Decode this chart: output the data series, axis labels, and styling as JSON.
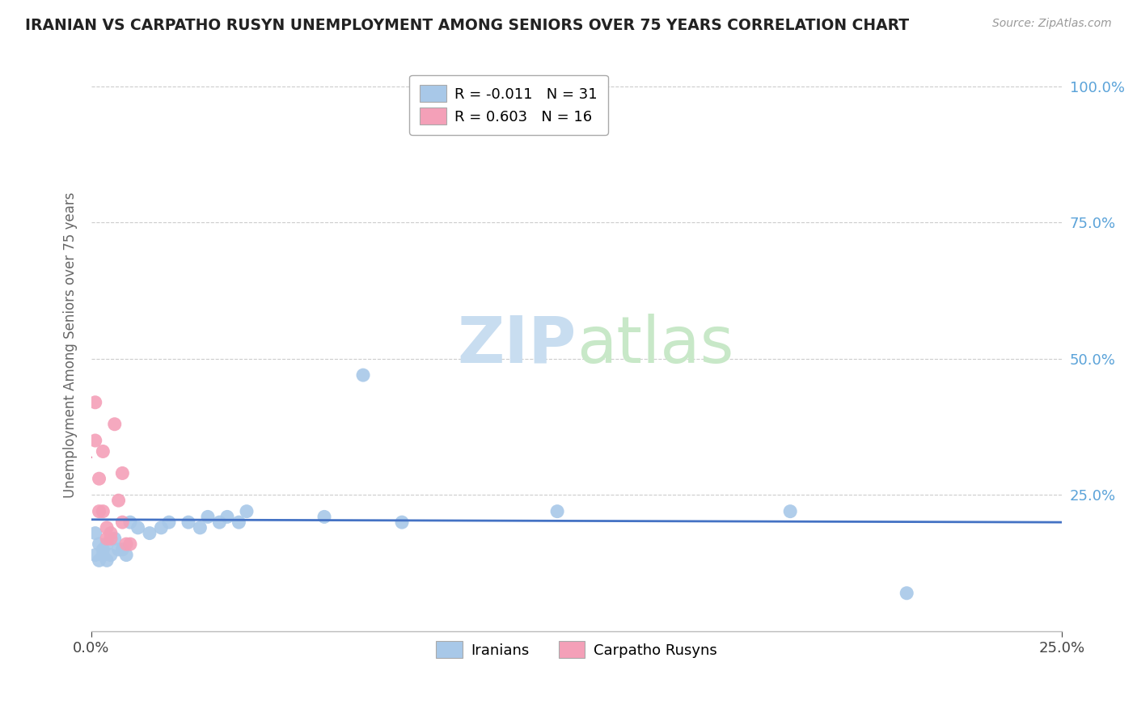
{
  "title": "IRANIAN VS CARPATHO RUSYN UNEMPLOYMENT AMONG SENIORS OVER 75 YEARS CORRELATION CHART",
  "source": "Source: ZipAtlas.com",
  "ylabel": "Unemployment Among Seniors over 75 years",
  "xlim": [
    0.0,
    0.25
  ],
  "ylim": [
    0.0,
    1.05
  ],
  "legend_label1": "R = -0.011   N = 31",
  "legend_label2": "R = 0.603   N = 16",
  "iranian_color": "#a8c8e8",
  "carpatho_color": "#f4a0b8",
  "iranian_line_color": "#4472c4",
  "carpatho_line_color": "#e05080",
  "background_color": "#ffffff",
  "iranians_x": [
    0.001,
    0.001,
    0.002,
    0.002,
    0.003,
    0.003,
    0.004,
    0.004,
    0.005,
    0.006,
    0.007,
    0.008,
    0.009,
    0.01,
    0.012,
    0.015,
    0.018,
    0.02,
    0.025,
    0.028,
    0.03,
    0.033,
    0.035,
    0.038,
    0.04,
    0.06,
    0.07,
    0.08,
    0.12,
    0.18,
    0.21
  ],
  "iranians_y": [
    0.18,
    0.14,
    0.16,
    0.13,
    0.15,
    0.14,
    0.16,
    0.13,
    0.14,
    0.17,
    0.15,
    0.15,
    0.14,
    0.2,
    0.19,
    0.18,
    0.19,
    0.2,
    0.2,
    0.19,
    0.21,
    0.2,
    0.21,
    0.2,
    0.22,
    0.21,
    0.47,
    0.2,
    0.22,
    0.22,
    0.07
  ],
  "carpatho_x": [
    0.001,
    0.001,
    0.002,
    0.002,
    0.003,
    0.003,
    0.004,
    0.004,
    0.005,
    0.005,
    0.006,
    0.007,
    0.008,
    0.008,
    0.009,
    0.01
  ],
  "carpatho_y": [
    0.35,
    0.42,
    0.28,
    0.22,
    0.33,
    0.22,
    0.19,
    0.17,
    0.17,
    0.18,
    0.38,
    0.24,
    0.2,
    0.29,
    0.16,
    0.16
  ],
  "carpatho_line_x_start": 0.0,
  "carpatho_line_x_end": 0.022,
  "iranian_line_y_level": 0.205,
  "yticks": [
    0.0,
    0.25,
    0.5,
    0.75,
    1.0
  ],
  "ytick_labels": [
    "",
    "25.0%",
    "50.0%",
    "75.0%",
    "100.0%"
  ],
  "ytick_color": "#5ba3d9",
  "watermark_zip_color": "#c8ddf0",
  "watermark_atlas_color": "#c8e8c8"
}
